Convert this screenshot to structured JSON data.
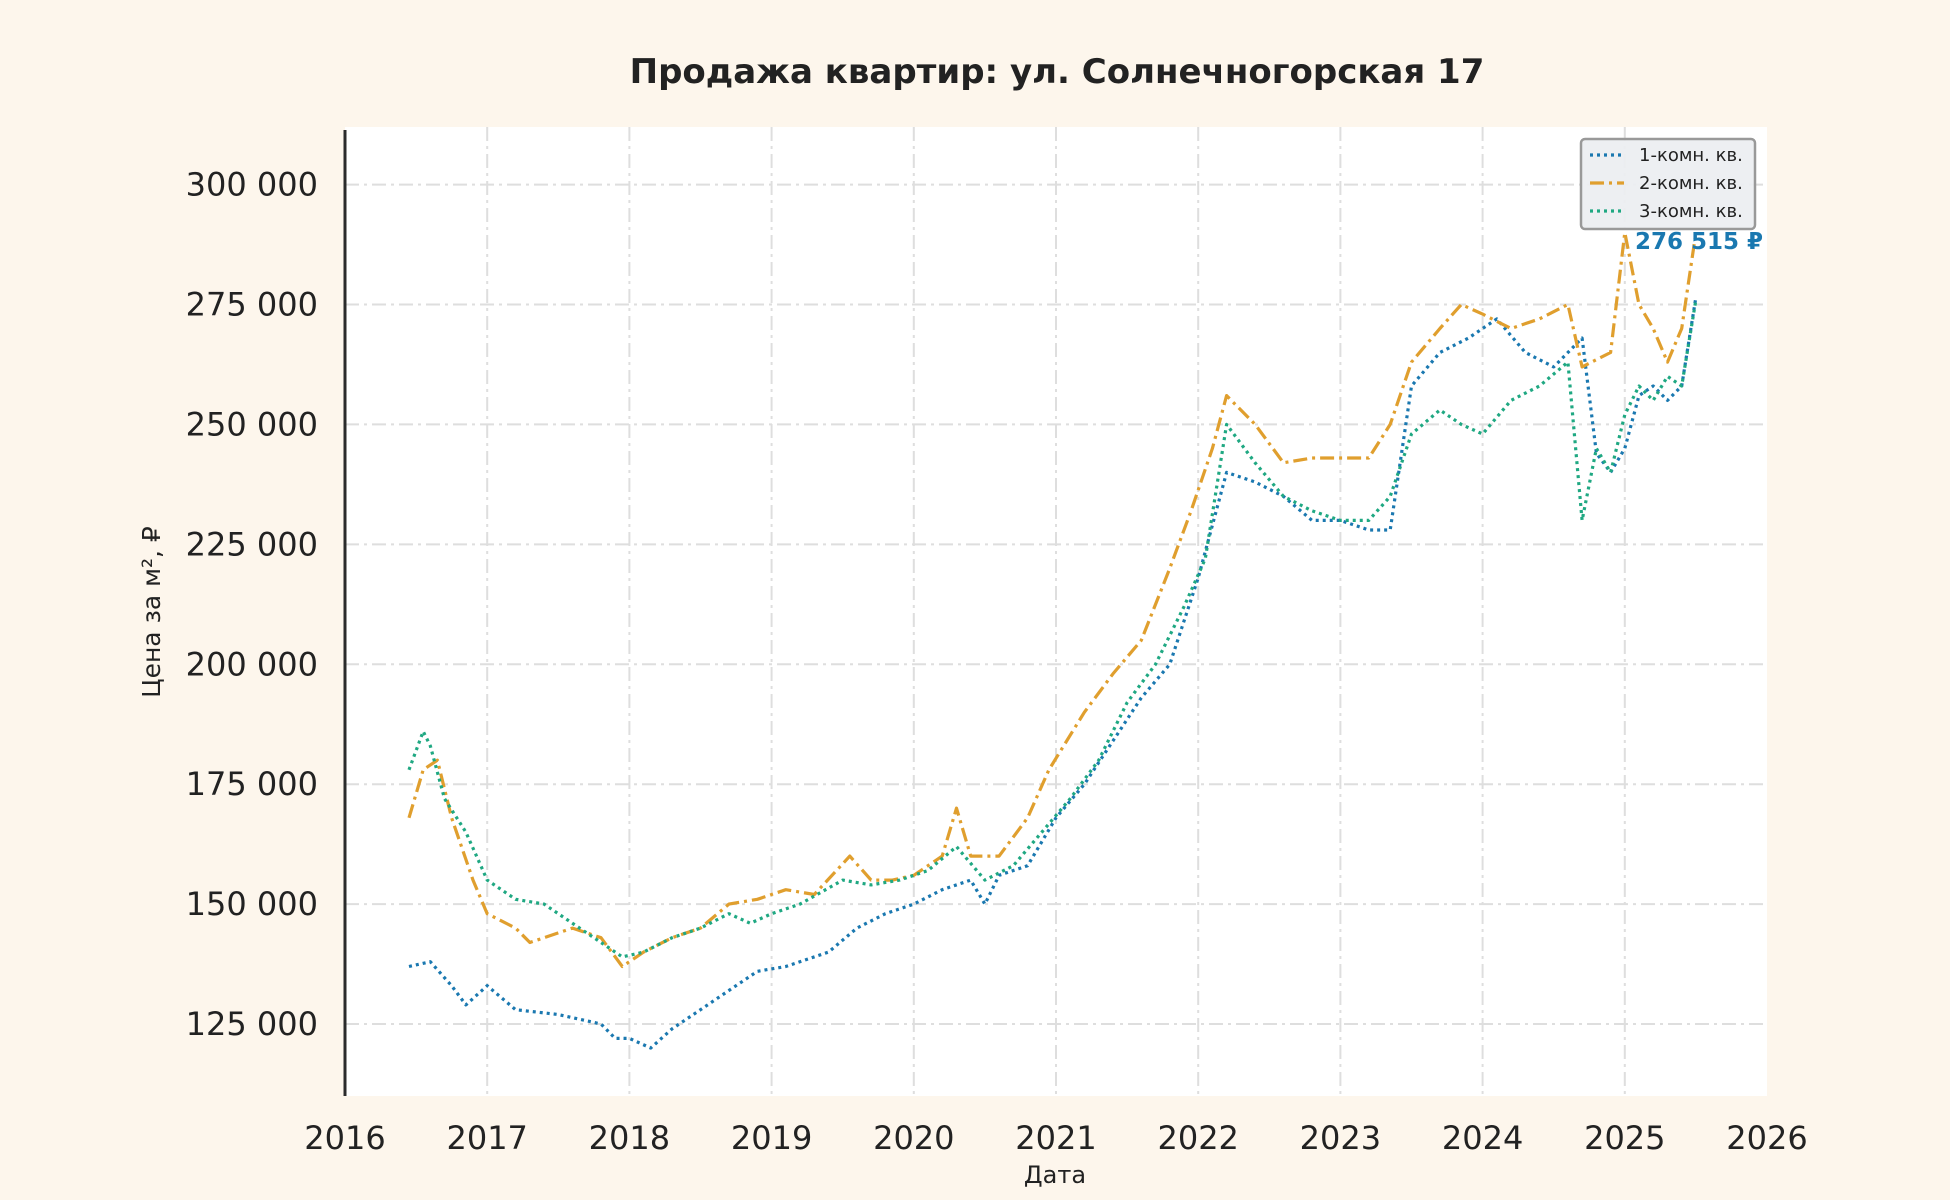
{
  "chart_data": {
    "type": "line",
    "title": "Продажа квартир: ул. Солнечногорская 17",
    "xlabel": "Дата",
    "ylabel": "Цена за м², ₽",
    "xlim": [
      2016,
      2026
    ],
    "ylim": [
      110000,
      312000
    ],
    "x_ticks": [
      "2016",
      "2017",
      "2018",
      "2019",
      "2020",
      "2021",
      "2022",
      "2023",
      "2024",
      "2025",
      "2026"
    ],
    "y_ticks": [
      "125 000",
      "150 000",
      "175 000",
      "200 000",
      "225 000",
      "250 000",
      "275 000",
      "300 000"
    ],
    "y_tick_values": [
      125000,
      150000,
      175000,
      200000,
      225000,
      250000,
      275000,
      300000
    ],
    "grid": true,
    "legend_position": "top-right",
    "last_value_label": "276 515 ₽",
    "series": [
      {
        "name": "1-комн. кв.",
        "color": "#1a78b0",
        "dash": "dotted",
        "x": [
          2016.45,
          2016.6,
          2016.75,
          2016.85,
          2017.0,
          2017.2,
          2017.5,
          2017.8,
          2017.9,
          2018.0,
          2018.15,
          2018.3,
          2018.5,
          2018.7,
          2018.9,
          2019.1,
          2019.4,
          2019.6,
          2019.8,
          2020.0,
          2020.2,
          2020.4,
          2020.5,
          2020.6,
          2020.8,
          2021.0,
          2021.2,
          2021.4,
          2021.6,
          2021.8,
          2022.0,
          2022.2,
          2022.4,
          2022.6,
          2022.8,
          2023.0,
          2023.2,
          2023.35,
          2023.5,
          2023.7,
          2023.9,
          2024.1,
          2024.3,
          2024.5,
          2024.7,
          2024.8,
          2024.9,
          2025.0,
          2025.1,
          2025.2,
          2025.3,
          2025.4,
          2025.5
        ],
        "y": [
          137000,
          138000,
          133000,
          129000,
          133000,
          128000,
          127000,
          125000,
          122000,
          122000,
          120000,
          124000,
          128000,
          132000,
          136000,
          137000,
          140000,
          145000,
          148000,
          150000,
          153000,
          155000,
          150000,
          156000,
          158000,
          168000,
          175000,
          184000,
          193000,
          200000,
          218000,
          240000,
          238000,
          235000,
          230000,
          230000,
          228000,
          228000,
          258000,
          265000,
          268000,
          272000,
          265000,
          262000,
          268000,
          244000,
          240000,
          245000,
          256000,
          258000,
          255000,
          258000,
          276515
        ]
      },
      {
        "name": "2-комн. кв.",
        "color": "#e09f2e",
        "dash": "dashdot",
        "x": [
          2016.45,
          2016.55,
          2016.65,
          2016.75,
          2016.9,
          2017.0,
          2017.2,
          2017.3,
          2017.6,
          2017.8,
          2017.95,
          2018.1,
          2018.3,
          2018.5,
          2018.7,
          2018.9,
          2019.1,
          2019.3,
          2019.55,
          2019.7,
          2019.85,
          2020.0,
          2020.2,
          2020.3,
          2020.4,
          2020.6,
          2020.8,
          2020.95,
          2021.2,
          2021.4,
          2021.6,
          2021.8,
          2021.95,
          2022.1,
          2022.2,
          2022.4,
          2022.6,
          2022.8,
          2023.0,
          2023.2,
          2023.35,
          2023.5,
          2023.7,
          2023.85,
          2024.0,
          2024.2,
          2024.4,
          2024.6,
          2024.7,
          2024.9,
          2025.0,
          2025.1,
          2025.2,
          2025.3,
          2025.4,
          2025.5
        ],
        "y": [
          168000,
          178000,
          180000,
          168000,
          155000,
          148000,
          145000,
          142000,
          145000,
          143000,
          137000,
          140000,
          143000,
          145000,
          150000,
          151000,
          153000,
          152000,
          160000,
          155000,
          155000,
          156000,
          160000,
          170000,
          160000,
          160000,
          168000,
          178000,
          190000,
          198000,
          205000,
          220000,
          232000,
          245000,
          256000,
          250000,
          242000,
          243000,
          243000,
          243000,
          250000,
          263000,
          270000,
          275000,
          273000,
          270000,
          272000,
          275000,
          262000,
          265000,
          290000,
          275000,
          270000,
          263000,
          270000,
          290000
        ]
      },
      {
        "name": "3-комн. кв.",
        "color": "#1fa882",
        "dash": "dotted",
        "x": [
          2016.45,
          2016.55,
          2016.6,
          2016.7,
          2016.85,
          2017.0,
          2017.2,
          2017.4,
          2017.6,
          2017.8,
          2017.95,
          2018.1,
          2018.3,
          2018.5,
          2018.7,
          2018.85,
          2019.0,
          2019.2,
          2019.5,
          2019.7,
          2019.9,
          2020.1,
          2020.3,
          2020.5,
          2020.7,
          2020.9,
          2021.1,
          2021.3,
          2021.5,
          2021.7,
          2021.9,
          2022.05,
          2022.2,
          2022.4,
          2022.6,
          2022.8,
          2023.0,
          2023.2,
          2023.35,
          2023.5,
          2023.7,
          2023.85,
          2024.0,
          2024.2,
          2024.4,
          2024.6,
          2024.7,
          2024.8,
          2024.9,
          2025.0,
          2025.1,
          2025.2,
          2025.3,
          2025.4,
          2025.5
        ],
        "y": [
          178000,
          186000,
          183000,
          172000,
          165000,
          155000,
          151000,
          150000,
          146000,
          142000,
          139000,
          140000,
          143000,
          145000,
          148000,
          146000,
          148000,
          150000,
          155000,
          154000,
          155000,
          157000,
          162000,
          155000,
          158000,
          165000,
          172000,
          180000,
          192000,
          200000,
          212000,
          222000,
          250000,
          242000,
          235000,
          232000,
          230000,
          230000,
          235000,
          248000,
          253000,
          250000,
          248000,
          255000,
          258000,
          263000,
          230000,
          245000,
          240000,
          252000,
          258000,
          255000,
          260000,
          258000,
          276000
        ]
      }
    ]
  }
}
